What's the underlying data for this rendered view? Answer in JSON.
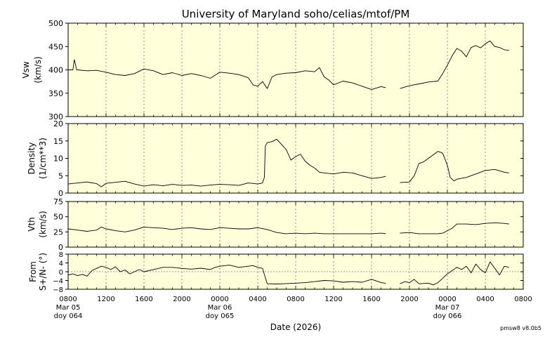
{
  "chart_data": {
    "type": "line",
    "title": "University of Maryland  soho/celias/mtof/PM",
    "xlabel": "Date (2026)",
    "version": "pmsw8 v8.0b5",
    "x_range_hours": [
      0,
      48
    ],
    "x_ticks": [
      {
        "h": 0,
        "label": "0800"
      },
      {
        "h": 4,
        "label": "1200"
      },
      {
        "h": 8,
        "label": "1600"
      },
      {
        "h": 12,
        "label": "2000"
      },
      {
        "h": 16,
        "label": "0000"
      },
      {
        "h": 20,
        "label": "0400"
      },
      {
        "h": 24,
        "label": "0800"
      },
      {
        "h": 28,
        "label": "1200"
      },
      {
        "h": 32,
        "label": "1600"
      },
      {
        "h": 36,
        "label": "2000"
      },
      {
        "h": 40,
        "label": "0000"
      },
      {
        "h": 44,
        "label": "0400"
      },
      {
        "h": 48,
        "label": "0800"
      }
    ],
    "date_labels": [
      {
        "h": 0,
        "date": "Mar 05",
        "doy": "doy 064"
      },
      {
        "h": 16,
        "date": "Mar 06",
        "doy": "doy 065"
      },
      {
        "h": 40,
        "date": "Mar 07",
        "doy": "doy 066"
      }
    ],
    "panels": [
      {
        "name": "vsw",
        "ylabel": "Vsw",
        "unit": "(km/s)",
        "ylim": [
          300,
          500
        ],
        "yticks": [
          300,
          350,
          400,
          450,
          500
        ],
        "ref_line": null,
        "segments": [
          [
            [
              0,
              400
            ],
            [
              0.5,
              400
            ],
            [
              0.65,
              422
            ],
            [
              0.9,
              400
            ],
            [
              2,
              398
            ],
            [
              3,
              399
            ],
            [
              4,
              395
            ],
            [
              5,
              390
            ],
            [
              6,
              388
            ],
            [
              7,
              392
            ],
            [
              8,
              402
            ],
            [
              9,
              398
            ],
            [
              10,
              390
            ],
            [
              11,
              394
            ],
            [
              12,
              388
            ],
            [
              13,
              392
            ],
            [
              14,
              388
            ],
            [
              15,
              382
            ],
            [
              16,
              395
            ],
            [
              17,
              393
            ],
            [
              18,
              390
            ],
            [
              19,
              383
            ],
            [
              19.5,
              368
            ],
            [
              20,
              365
            ],
            [
              20.5,
              375
            ],
            [
              21,
              360
            ],
            [
              21.5,
              385
            ],
            [
              22,
              390
            ],
            [
              23,
              393
            ],
            [
              24,
              394
            ],
            [
              25,
              398
            ],
            [
              26,
              396
            ],
            [
              26.5,
              405
            ],
            [
              27,
              385
            ],
            [
              27.5,
              378
            ],
            [
              28,
              368
            ],
            [
              29,
              376
            ],
            [
              30,
              372
            ],
            [
              31,
              365
            ],
            [
              32,
              358
            ],
            [
              33,
              364
            ],
            [
              33.5,
              362
            ]
          ],
          [
            [
              35,
              360
            ],
            [
              36,
              366
            ],
            [
              37,
              370
            ],
            [
              38,
              374
            ],
            [
              39,
              376
            ],
            [
              39.5,
              392
            ],
            [
              40,
              410
            ],
            [
              40.5,
              430
            ],
            [
              41,
              446
            ],
            [
              41.5,
              440
            ],
            [
              42,
              428
            ],
            [
              42.5,
              448
            ],
            [
              43,
              452
            ],
            [
              43.5,
              447
            ],
            [
              44,
              456
            ],
            [
              44.5,
              462
            ],
            [
              45,
              450
            ],
            [
              45.5,
              448
            ],
            [
              46,
              443
            ],
            [
              46.5,
              442
            ]
          ]
        ]
      },
      {
        "name": "density",
        "ylabel": "Density",
        "unit": "(1/cm**3)",
        "ylim": [
          0,
          20
        ],
        "yticks": [
          0,
          5,
          10,
          15,
          20
        ],
        "ref_line": null,
        "segments": [
          [
            [
              0,
              2.6
            ],
            [
              1,
              2.9
            ],
            [
              2,
              3.2
            ],
            [
              3,
              2.7
            ],
            [
              3.5,
              1.8
            ],
            [
              4,
              2.8
            ],
            [
              5,
              3.1
            ],
            [
              6,
              3.4
            ],
            [
              7,
              2.6
            ],
            [
              8,
              2.0
            ],
            [
              9,
              2.4
            ],
            [
              10,
              2.1
            ],
            [
              11,
              2.5
            ],
            [
              12,
              2.2
            ],
            [
              13,
              2.3
            ],
            [
              14,
              2.0
            ],
            [
              15,
              2.3
            ],
            [
              16,
              2.5
            ],
            [
              17,
              2.4
            ],
            [
              18,
              2.2
            ],
            [
              19,
              2.9
            ],
            [
              20,
              2.6
            ],
            [
              20.5,
              2.9
            ],
            [
              20.7,
              4.5
            ],
            [
              20.8,
              13.5
            ],
            [
              21,
              14.5
            ],
            [
              21.5,
              14.8
            ],
            [
              22,
              15.5
            ],
            [
              22.5,
              14.0
            ],
            [
              23,
              12.5
            ],
            [
              23.5,
              9.5
            ],
            [
              24,
              10.5
            ],
            [
              24.5,
              11.2
            ],
            [
              25,
              9.2
            ],
            [
              25.5,
              8.0
            ],
            [
              26,
              7.2
            ],
            [
              26.5,
              6.0
            ],
            [
              27,
              5.8
            ],
            [
              28,
              5.5
            ],
            [
              29,
              6.0
            ],
            [
              30,
              5.8
            ],
            [
              31,
              5.0
            ],
            [
              32,
              4.2
            ],
            [
              33,
              4.5
            ],
            [
              33.5,
              4.8
            ]
          ],
          [
            [
              35,
              3.0
            ],
            [
              36,
              3.2
            ],
            [
              36.5,
              5.0
            ],
            [
              37,
              8.5
            ],
            [
              37.5,
              9.0
            ],
            [
              38,
              10.0
            ],
            [
              38.5,
              11.0
            ],
            [
              39,
              12.0
            ],
            [
              39.5,
              11.5
            ],
            [
              40,
              8.0
            ],
            [
              40.3,
              4.5
            ],
            [
              40.7,
              3.5
            ],
            [
              41,
              4.0
            ],
            [
              42,
              4.5
            ],
            [
              43,
              5.5
            ],
            [
              44,
              6.5
            ],
            [
              45,
              6.8
            ],
            [
              46,
              6.0
            ],
            [
              46.5,
              5.8
            ]
          ]
        ]
      },
      {
        "name": "vth",
        "ylabel": "Vth",
        "unit": "(km/s)",
        "ylim": [
          0,
          75
        ],
        "yticks": [
          0,
          25,
          50,
          75
        ],
        "ref_line": null,
        "segments": [
          [
            [
              0,
              30
            ],
            [
              1,
              28
            ],
            [
              2,
              26
            ],
            [
              3,
              28
            ],
            [
              3.5,
              33
            ],
            [
              4,
              30
            ],
            [
              5,
              27
            ],
            [
              6,
              25
            ],
            [
              7,
              28
            ],
            [
              8,
              33
            ],
            [
              9,
              32
            ],
            [
              10,
              31
            ],
            [
              11,
              29
            ],
            [
              12,
              31
            ],
            [
              13,
              32
            ],
            [
              14,
              30
            ],
            [
              15,
              29
            ],
            [
              16,
              32
            ],
            [
              17,
              31
            ],
            [
              18,
              30
            ],
            [
              19,
              30
            ],
            [
              20,
              32
            ],
            [
              21,
              29
            ],
            [
              22,
              24
            ],
            [
              23,
              22
            ],
            [
              24,
              23
            ],
            [
              25,
              22
            ],
            [
              26,
              23
            ],
            [
              27,
              22
            ],
            [
              28,
              22
            ],
            [
              29,
              22
            ],
            [
              30,
              22
            ],
            [
              31,
              22
            ],
            [
              32,
              22
            ],
            [
              33,
              23
            ],
            [
              33.5,
              22
            ]
          ],
          [
            [
              35,
              23
            ],
            [
              36,
              24
            ],
            [
              37,
              22
            ],
            [
              38,
              22
            ],
            [
              39,
              22
            ],
            [
              39.5,
              23
            ],
            [
              40,
              27
            ],
            [
              40.5,
              31
            ],
            [
              41,
              38
            ],
            [
              42,
              38
            ],
            [
              43,
              37
            ],
            [
              44,
              39
            ],
            [
              45,
              40
            ],
            [
              46,
              39
            ],
            [
              46.5,
              38
            ]
          ]
        ]
      },
      {
        "name": "from-sn",
        "ylabel": "From",
        "unit": "S+/N- (°)",
        "ylim": [
          -8,
          8
        ],
        "yticks": [
          -8,
          -4,
          0,
          4,
          8
        ],
        "ytick_labels": [
          "−8",
          "−4",
          "0",
          "4",
          "8"
        ],
        "ref_line": 0,
        "segments": [
          [
            [
              0,
              -1.5
            ],
            [
              0.5,
              -1.0
            ],
            [
              1,
              -1.8
            ],
            [
              1.5,
              -1.2
            ],
            [
              2,
              -2.0
            ],
            [
              2.5,
              0.5
            ],
            [
              3,
              1.5
            ],
            [
              3.5,
              2.5
            ],
            [
              4,
              2.0
            ],
            [
              4.5,
              1.0
            ],
            [
              5,
              2.2
            ],
            [
              5.5,
              0.0
            ],
            [
              6,
              0.8
            ],
            [
              6.5,
              -1.0
            ],
            [
              7,
              0.0
            ],
            [
              7.5,
              1.0
            ],
            [
              8,
              0.0
            ],
            [
              9,
              1.0
            ],
            [
              10,
              2.0
            ],
            [
              11,
              2.0
            ],
            [
              12,
              1.5
            ],
            [
              13,
              1.2
            ],
            [
              14,
              1.6
            ],
            [
              15,
              1.0
            ],
            [
              15.5,
              2.0
            ],
            [
              16,
              2.5
            ],
            [
              17,
              3.0
            ],
            [
              18,
              2.0
            ],
            [
              19,
              2.5
            ],
            [
              19.5,
              2.8
            ],
            [
              20,
              2.0
            ],
            [
              20.5,
              1.5
            ],
            [
              21,
              -5.5
            ],
            [
              22,
              -5.6
            ],
            [
              23,
              -5.4
            ],
            [
              24,
              -5.2
            ],
            [
              25,
              -5.0
            ],
            [
              26,
              -4.5
            ],
            [
              27,
              -4.0
            ],
            [
              28,
              -4.2
            ],
            [
              29,
              -4.8
            ],
            [
              30,
              -4.5
            ],
            [
              31,
              -4.8
            ],
            [
              32,
              -3.5
            ],
            [
              32.5,
              -4.2
            ],
            [
              33,
              -5.0
            ],
            [
              33.5,
              -5.3
            ]
          ],
          [
            [
              35,
              -5.5
            ],
            [
              35.5,
              -4.5
            ],
            [
              36,
              -5.0
            ],
            [
              36.5,
              -3.5
            ],
            [
              37,
              -5.5
            ],
            [
              38,
              -5.2
            ],
            [
              38.5,
              -6.0
            ],
            [
              39,
              -5.0
            ],
            [
              39.5,
              -3.0
            ],
            [
              40,
              -1.0
            ],
            [
              40.5,
              0.5
            ],
            [
              41,
              2.0
            ],
            [
              41.5,
              1.0
            ],
            [
              42,
              2.5
            ],
            [
              42.5,
              -0.5
            ],
            [
              43,
              3.5
            ],
            [
              43.5,
              1.0
            ],
            [
              44,
              -0.5
            ],
            [
              44.5,
              4.5
            ],
            [
              45,
              1.5
            ],
            [
              45.5,
              -1.5
            ],
            [
              46,
              2.5
            ],
            [
              46.5,
              2.0
            ]
          ]
        ]
      }
    ]
  }
}
